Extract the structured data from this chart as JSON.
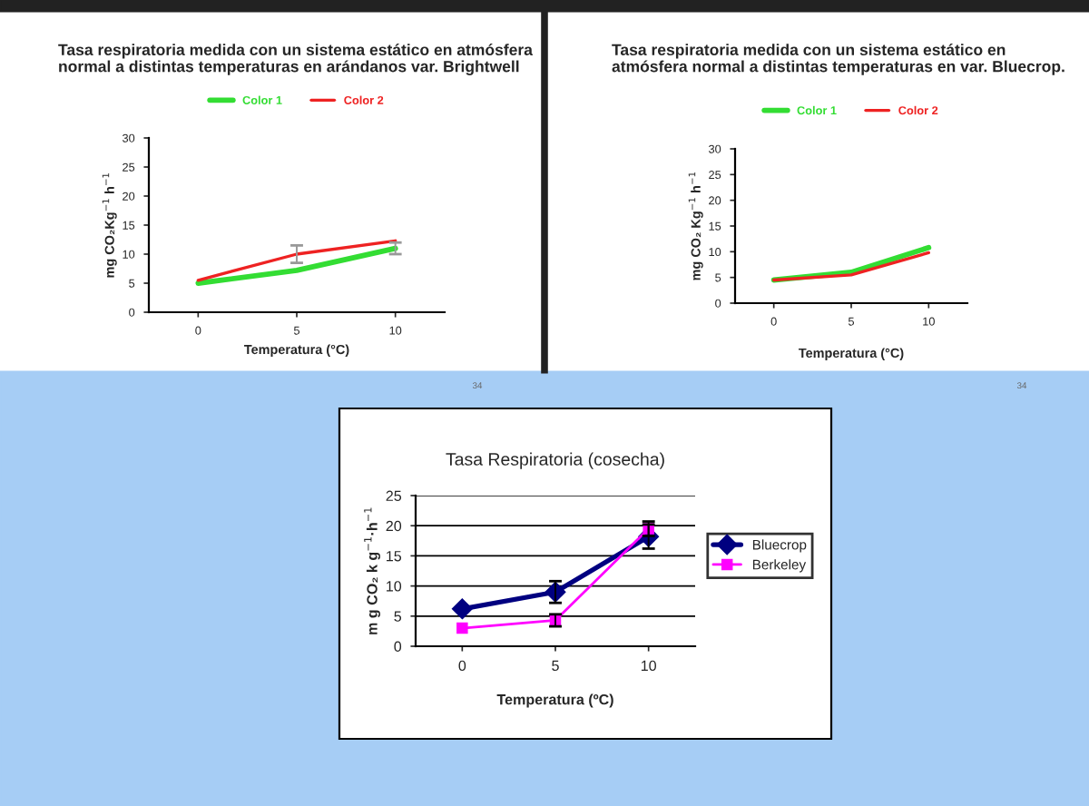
{
  "chart_data": [
    {
      "type": "line",
      "title": "Tasa respiratoria medida con un sistema estático en atmósfera normal a distintas temperaturas en arándanos var. Brightwell",
      "xlabel": "Temperatura (°C)",
      "ylabel": "mg CO₂Kg$^{−1}$ h$^{−1}$",
      "categories": [
        "0",
        "5",
        "10"
      ],
      "ylim": [
        0,
        30
      ],
      "yticks": [
        0,
        5,
        10,
        15,
        20,
        25,
        30
      ],
      "legend": "top",
      "grid": false,
      "series": [
        {
          "name": "Color 1",
          "color": "#33dd33",
          "values": [
            5,
            7.2,
            11
          ],
          "errors": [
            null,
            null,
            1
          ]
        },
        {
          "name": "Color 2",
          "color": "#ee2222",
          "values": [
            5.5,
            10,
            12.3
          ],
          "errors": [
            null,
            1.5,
            null
          ]
        }
      ],
      "annotations": [
        "34"
      ]
    },
    {
      "type": "line",
      "title": "Tasa respiratoria medida con un sistema estático en atmósfera normal a distintas temperaturas en var. Bluecrop.",
      "xlabel": "Temperatura (°C)",
      "ylabel": "mg CO₂ Kg$^{−1}$ h$^{−1}$",
      "categories": [
        "0",
        "5",
        "10"
      ],
      "ylim": [
        0,
        30
      ],
      "yticks": [
        0,
        5,
        10,
        15,
        20,
        25,
        30
      ],
      "legend": "top",
      "grid": false,
      "series": [
        {
          "name": "Color 1",
          "color": "#33dd33",
          "values": [
            4.5,
            6,
            10.8
          ]
        },
        {
          "name": "Color 2",
          "color": "#ee2222",
          "values": [
            4.5,
            5.5,
            9.8
          ]
        }
      ],
      "annotations": [
        "34"
      ]
    },
    {
      "type": "line",
      "title": "Tasa Respiratoria (cosecha)",
      "xlabel": "Temperatura (ºC)",
      "ylabel": "m g CO₂ k g$^{−1}$·h$^{−1}$",
      "categories": [
        "0",
        "5",
        "10"
      ],
      "ylim": [
        0,
        25
      ],
      "yticks": [
        0,
        5,
        10,
        15,
        20,
        25
      ],
      "legend": "right",
      "grid": "y",
      "series": [
        {
          "name": "Bluecrop",
          "color": "#000080",
          "marker": "diamond",
          "values": [
            6.2,
            9,
            18.2
          ],
          "errors": [
            null,
            1.8,
            2
          ]
        },
        {
          "name": "Berkeley",
          "color": "#ff00ff",
          "marker": "square",
          "values": [
            3,
            4.3,
            19.5
          ],
          "errors": [
            null,
            1,
            1.2
          ]
        }
      ]
    }
  ]
}
